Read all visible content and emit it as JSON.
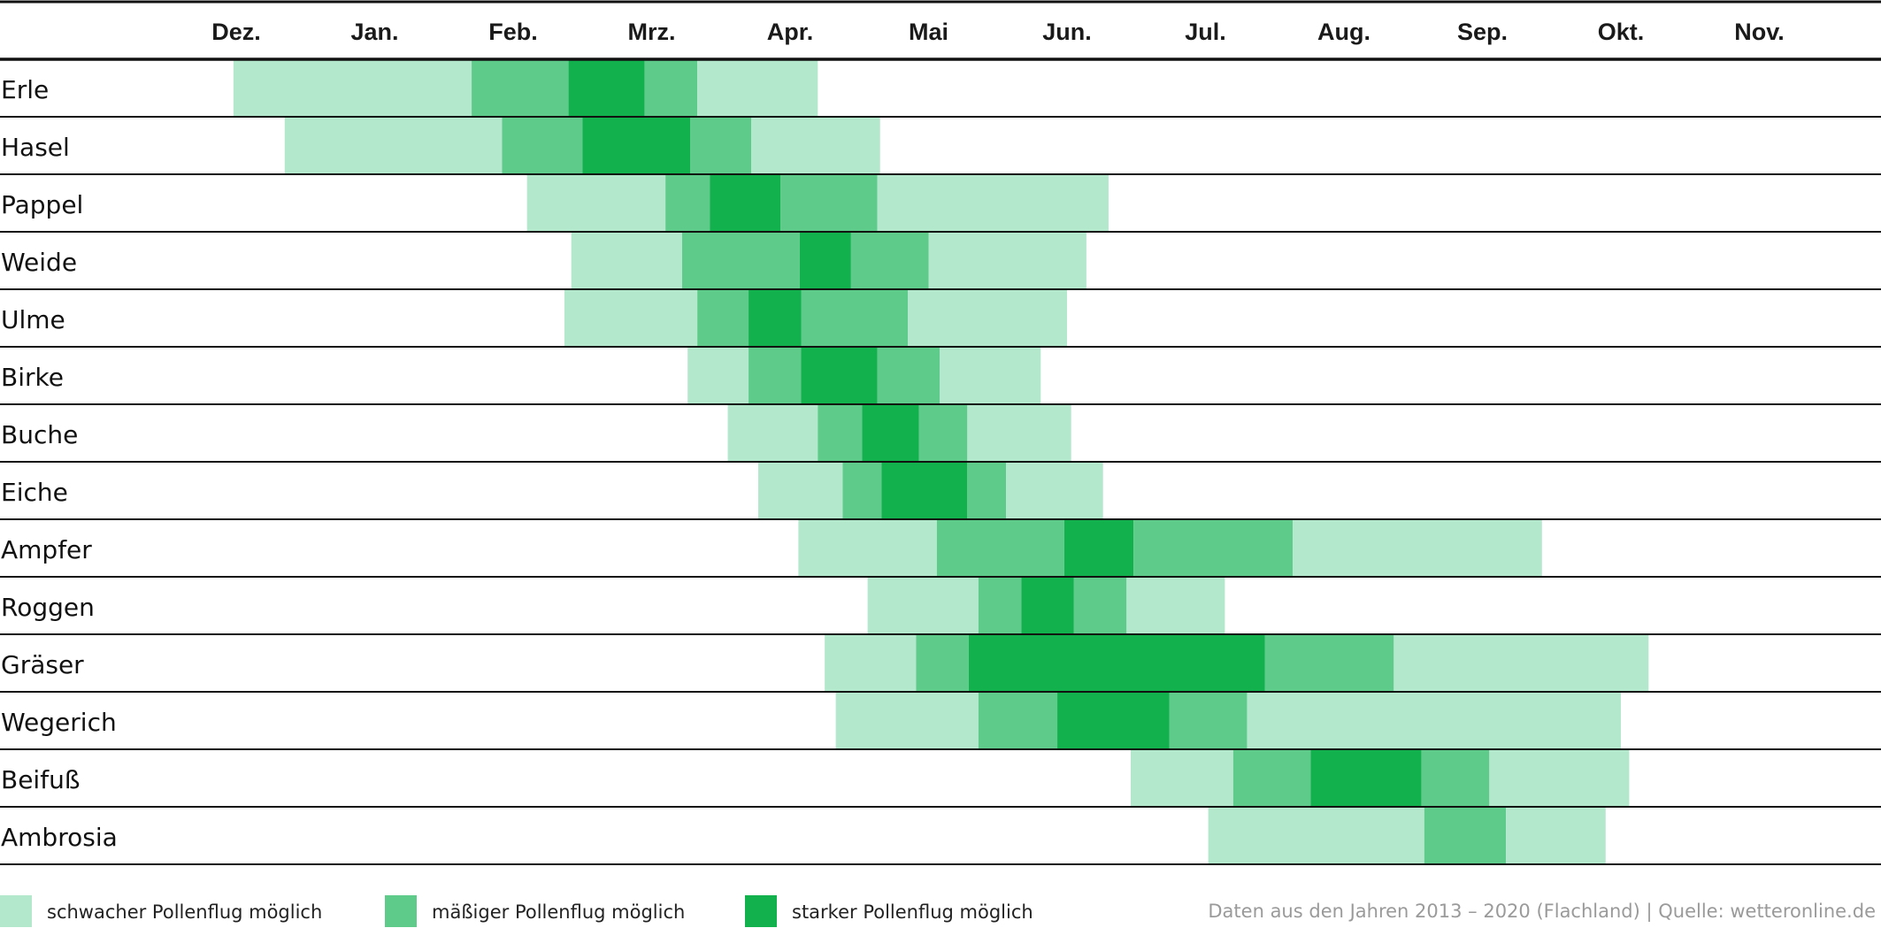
{
  "chart_data": {
    "type": "heatmap",
    "title": "",
    "months": [
      "Dez.",
      "Jan.",
      "Feb.",
      "Mrz.",
      "Apr.",
      "Mai",
      "Jun.",
      "Jul.",
      "Aug.",
      "Sep.",
      "Okt.",
      "Nov."
    ],
    "levels": [
      {
        "key": "weak",
        "label": "schwacher Pollenflug möglich",
        "color": "#b3e8cd"
      },
      {
        "key": "moderate",
        "label": "mäßiger Pollenflug möglich",
        "color": "#5fcb8a"
      },
      {
        "key": "strong",
        "label": "starker Pollenflug möglich",
        "color": "#13b04e"
      }
    ],
    "rows": [
      {
        "name": "Erle",
        "segments": [
          [
            -0.02,
            1.7,
            "weak"
          ],
          [
            1.7,
            2.4,
            "moderate"
          ],
          [
            2.4,
            2.95,
            "strong"
          ],
          [
            2.95,
            3.33,
            "moderate"
          ],
          [
            3.33,
            4.2,
            "weak"
          ]
        ]
      },
      {
        "name": "Hasel",
        "segments": [
          [
            0.35,
            1.92,
            "weak"
          ],
          [
            1.92,
            2.5,
            "moderate"
          ],
          [
            2.5,
            3.28,
            "strong"
          ],
          [
            3.28,
            3.72,
            "moderate"
          ],
          [
            3.72,
            4.65,
            "weak"
          ]
        ]
      },
      {
        "name": "Pappel",
        "segments": [
          [
            2.1,
            3.1,
            "weak"
          ],
          [
            3.1,
            3.42,
            "moderate"
          ],
          [
            3.42,
            3.93,
            "strong"
          ],
          [
            3.93,
            4.63,
            "moderate"
          ],
          [
            4.63,
            6.3,
            "weak"
          ]
        ]
      },
      {
        "name": "Weide",
        "segments": [
          [
            2.42,
            3.22,
            "weak"
          ],
          [
            3.22,
            4.07,
            "moderate"
          ],
          [
            4.07,
            4.44,
            "strong"
          ],
          [
            4.44,
            5.0,
            "moderate"
          ],
          [
            5.0,
            6.14,
            "weak"
          ]
        ]
      },
      {
        "name": "Ulme",
        "segments": [
          [
            2.37,
            3.33,
            "weak"
          ],
          [
            3.33,
            3.7,
            "moderate"
          ],
          [
            3.7,
            4.08,
            "strong"
          ],
          [
            4.08,
            4.85,
            "moderate"
          ],
          [
            4.85,
            6.0,
            "weak"
          ]
        ]
      },
      {
        "name": "Birke",
        "segments": [
          [
            3.26,
            3.7,
            "weak"
          ],
          [
            3.7,
            4.08,
            "moderate"
          ],
          [
            4.08,
            4.63,
            "strong"
          ],
          [
            4.63,
            5.08,
            "moderate"
          ],
          [
            5.08,
            5.81,
            "weak"
          ]
        ]
      },
      {
        "name": "Buche",
        "segments": [
          [
            3.55,
            4.2,
            "weak"
          ],
          [
            4.2,
            4.52,
            "moderate"
          ],
          [
            4.52,
            4.93,
            "strong"
          ],
          [
            4.93,
            5.28,
            "moderate"
          ],
          [
            5.28,
            6.03,
            "weak"
          ]
        ]
      },
      {
        "name": "Eiche",
        "segments": [
          [
            3.77,
            4.38,
            "weak"
          ],
          [
            4.38,
            4.66,
            "moderate"
          ],
          [
            4.66,
            5.28,
            "strong"
          ],
          [
            5.28,
            5.56,
            "moderate"
          ],
          [
            5.56,
            6.26,
            "weak"
          ]
        ]
      },
      {
        "name": "Ampfer",
        "segments": [
          [
            4.06,
            5.06,
            "weak"
          ],
          [
            5.06,
            5.98,
            "moderate"
          ],
          [
            5.98,
            6.48,
            "strong"
          ],
          [
            6.48,
            7.63,
            "moderate"
          ],
          [
            7.63,
            9.43,
            "weak"
          ]
        ]
      },
      {
        "name": "Roggen",
        "segments": [
          [
            4.56,
            5.36,
            "weak"
          ],
          [
            5.36,
            5.67,
            "moderate"
          ],
          [
            5.67,
            6.05,
            "strong"
          ],
          [
            6.05,
            6.43,
            "moderate"
          ],
          [
            6.43,
            7.14,
            "weak"
          ]
        ]
      },
      {
        "name": "Gräser",
        "segments": [
          [
            4.25,
            4.91,
            "weak"
          ],
          [
            4.91,
            5.29,
            "moderate"
          ],
          [
            5.29,
            7.43,
            "strong"
          ],
          [
            7.43,
            8.36,
            "moderate"
          ],
          [
            8.36,
            10.2,
            "weak"
          ]
        ]
      },
      {
        "name": "Wegerich",
        "segments": [
          [
            4.33,
            5.36,
            "weak"
          ],
          [
            5.36,
            5.93,
            "moderate"
          ],
          [
            5.93,
            6.74,
            "strong"
          ],
          [
            6.74,
            7.3,
            "moderate"
          ],
          [
            7.3,
            10.0,
            "weak"
          ]
        ]
      },
      {
        "name": "Beifuß",
        "segments": [
          [
            6.46,
            7.2,
            "weak"
          ],
          [
            7.2,
            7.76,
            "moderate"
          ],
          [
            7.76,
            8.56,
            "strong"
          ],
          [
            8.56,
            9.05,
            "moderate"
          ],
          [
            9.05,
            10.06,
            "weak"
          ]
        ]
      },
      {
        "name": "Ambrosia",
        "segments": [
          [
            7.02,
            8.58,
            "weak"
          ],
          [
            8.58,
            9.17,
            "moderate"
          ],
          [
            9.17,
            9.89,
            "weak"
          ]
        ]
      }
    ],
    "source": "Daten aus den Jahren 2013 – 2020 (Flachland) | Quelle: wetteronline.de"
  }
}
